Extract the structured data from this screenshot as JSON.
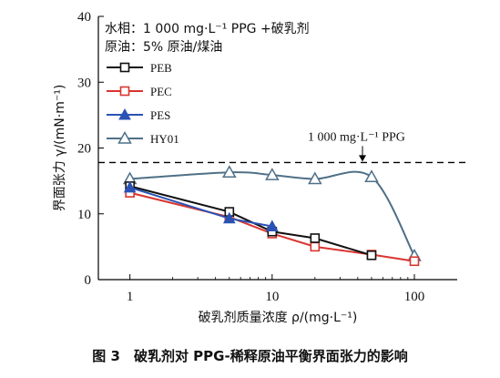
{
  "chart_data": {
    "type": "line",
    "x_scale": "log",
    "xlim": [
      0.6,
      200
    ],
    "ylim": [
      0,
      40
    ],
    "x_ticks": [
      1,
      10,
      100
    ],
    "y_ticks": [
      0,
      10,
      20,
      30,
      40
    ],
    "x_tick_labels": [
      "1",
      "10",
      "100"
    ],
    "y_tick_labels": [
      "0",
      "10",
      "20",
      "30",
      "40"
    ],
    "xlabel": "破乳剂质量浓度 ρ/(mg·L⁻¹)",
    "ylabel": "界面张力 γ/(mN·m⁻¹)",
    "grid": false,
    "legend_position": "left",
    "conditions": [
      "水相：1 000 mg·L⁻¹ PPG +破乳剂",
      "原油：5% 原油/煤油"
    ],
    "reference_line": {
      "y": 17.8,
      "label": "1 000 mg·L⁻¹ PPG",
      "style": "dashed",
      "color": "#000000"
    },
    "series": [
      {
        "name": "PEB",
        "marker": "square-open",
        "color": "#111111",
        "x": [
          1,
          5,
          10,
          20,
          50
        ],
        "y": [
          14.2,
          10.3,
          7.3,
          6.3,
          3.7
        ]
      },
      {
        "name": "PEC",
        "marker": "square-open",
        "color": "#d9352f",
        "x": [
          1,
          5,
          10,
          20,
          50,
          100
        ],
        "y": [
          13.2,
          9.5,
          7.0,
          5.0,
          3.8,
          2.8
        ]
      },
      {
        "name": "PES",
        "marker": "triangle-filled",
        "color": "#2a52b5",
        "x": [
          1,
          5,
          10
        ],
        "y": [
          14.0,
          9.3,
          8.1
        ]
      },
      {
        "name": "HY01",
        "marker": "triangle-open",
        "color": "#4f7087",
        "x": [
          1,
          5,
          10,
          20,
          50,
          100
        ],
        "y": [
          15.3,
          16.3,
          15.9,
          15.3,
          15.6,
          3.6
        ]
      }
    ]
  },
  "caption": "图 3　破乳剂对 PPG-稀释原油平衡界面张力的影响"
}
